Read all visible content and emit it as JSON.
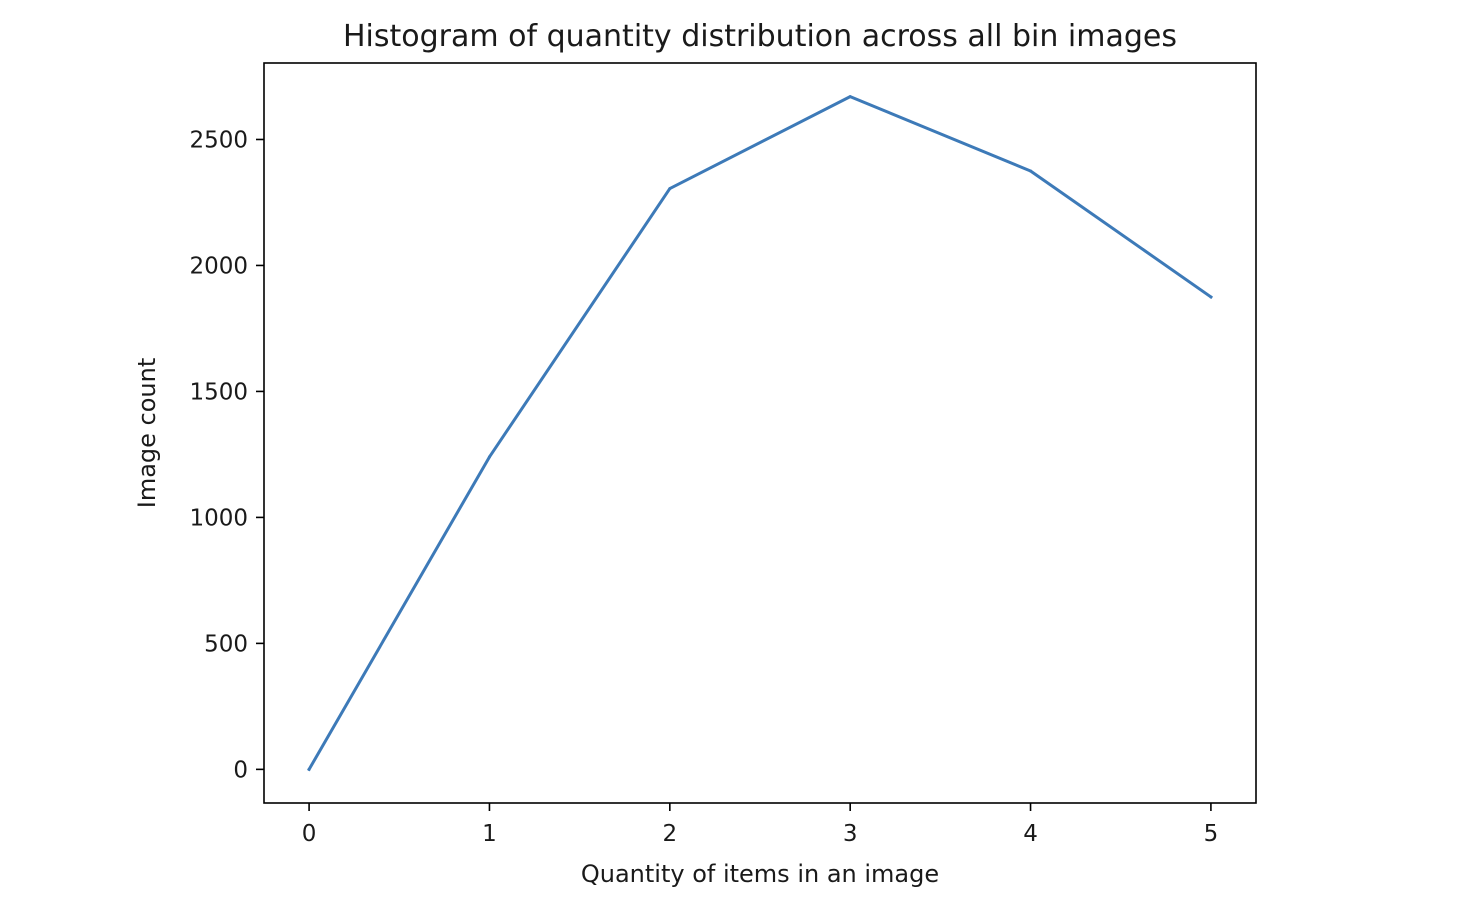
{
  "chart_data": {
    "type": "line",
    "title": "Histogram of quantity distribution across all bin images",
    "xlabel": "Quantity of items in an image",
    "ylabel": "Image count",
    "x": [
      0,
      1,
      2,
      3,
      4,
      5
    ],
    "series": [
      {
        "values": [
          0,
          1240,
          2305,
          2670,
          2375,
          1875
        ],
        "color": "#3d7ab8"
      }
    ],
    "xticks": [
      0,
      1,
      2,
      3,
      4,
      5
    ],
    "xtick_labels": [
      "0",
      "1",
      "2",
      "3",
      "4",
      "5"
    ],
    "yticks": [
      0,
      500,
      1000,
      1500,
      2000,
      2500
    ],
    "ytick_labels": [
      "0",
      "500",
      "1000",
      "1500",
      "2000",
      "2500"
    ],
    "xlim": [
      -0.25,
      5.25
    ],
    "ylim": [
      -133.5,
      2803.5
    ],
    "grid": false,
    "legend": "none"
  }
}
